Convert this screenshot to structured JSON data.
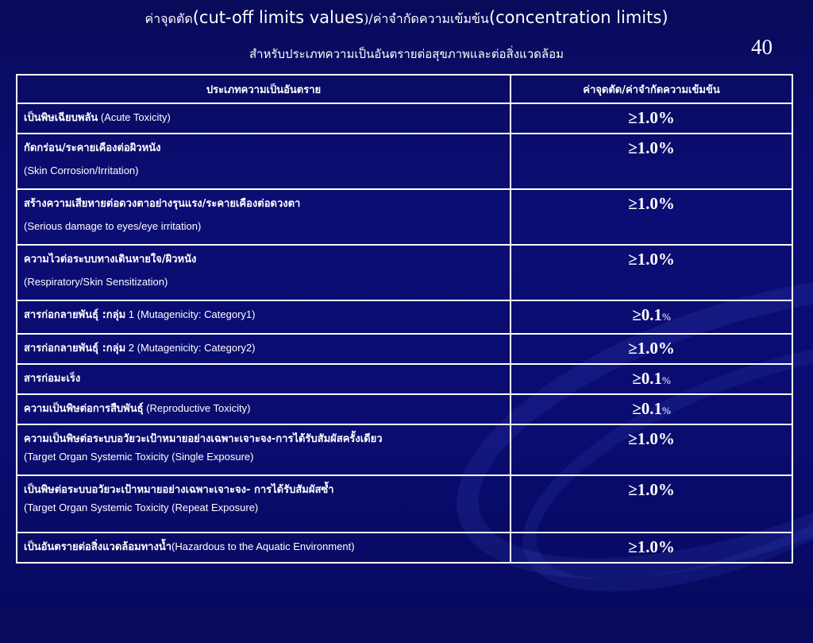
{
  "slide": {
    "title_thai_a": "ค่าจุดตัด",
    "title_en_a": "(cut-off limits values",
    "title_thai_b": ")/ค่าจำกัดความเข้มข้น",
    "title_en_b": "(concentration limits)",
    "subtitle": "สำหรับประเภทความเป็นอันตรายต่อสุขภาพและต่อสิ่งแวดล้อม",
    "page_number": "40"
  },
  "table": {
    "headers": [
      "ประเภทความเป็นอันตราย",
      "ค่าจุดตัด/ค่าจำกัดความเข้มข้น"
    ],
    "rows": [
      {
        "thai": "เป็นพิษเฉียบพลัน",
        "en": " (Acute Toxicity)",
        "value": "≥1.0%"
      },
      {
        "thai": "กัดกร่อน/ระคายเคืองต่อผิวหนัง",
        "en": "(Skin Corrosion/Irritation)",
        "value": "≥1.0%"
      },
      {
        "thai": "สร้างความเสียหายต่อดวงตาอย่างรุนแรง/ระคายเคืองต่อดวงตา",
        "en": "(Serious damage to eyes/eye irritation)",
        "value": "≥1.0%"
      },
      {
        "thai": "ความไวต่อระบบทางเดินหายใจ/ผิวหนัง",
        "en": "(Respiratory/Skin Sensitization)",
        "value": "≥1.0%"
      },
      {
        "thai": "สารก่อกลายพันธุ์ :กลุ่ม",
        "en": " 1 (Mutagenicity: Category1)",
        "value": "≥0.1",
        "unit": "%"
      },
      {
        "thai": "สารก่อกลายพันธุ์ :กลุ่ม",
        "en": " 2 (Mutagenicity: Category2)",
        "value": "≥1.0%"
      },
      {
        "thai": "สารก่อมะเร็ง",
        "en": "",
        "value": "≥0.1",
        "unit": "%"
      },
      {
        "thai": "ความเป็นพิษต่อการสืบพันธุ์",
        "en": " (Reproductive Toxicity)",
        "value": "≥0.1",
        "unit": "%"
      },
      {
        "thai": "ความเป็นพิษต่อระบบอวัยวะเป้าหมายอย่างเฉพาะเจาะจง-การได้รับสัมผัสครั้งเดียว",
        "en": "(Target Organ Systemic Toxicity (Single Exposure)",
        "value": "≥1.0%"
      },
      {
        "thai": "เป็นพิษต่อระบบอวัยวะเป้าหมายอย่างเฉพาะเจาะจง- การได้รับสัมผัสซ้ำ",
        "en": "(Target Organ Systemic Toxicity (Repeat Exposure)",
        "value": "≥1.0%"
      },
      {
        "thai": "เป็นอันตรายต่อสิ่งแวดล้อมทางน้ำ",
        "en": "(Hazardous to the Aquatic Environment)",
        "value": "≥1.0%"
      }
    ]
  }
}
